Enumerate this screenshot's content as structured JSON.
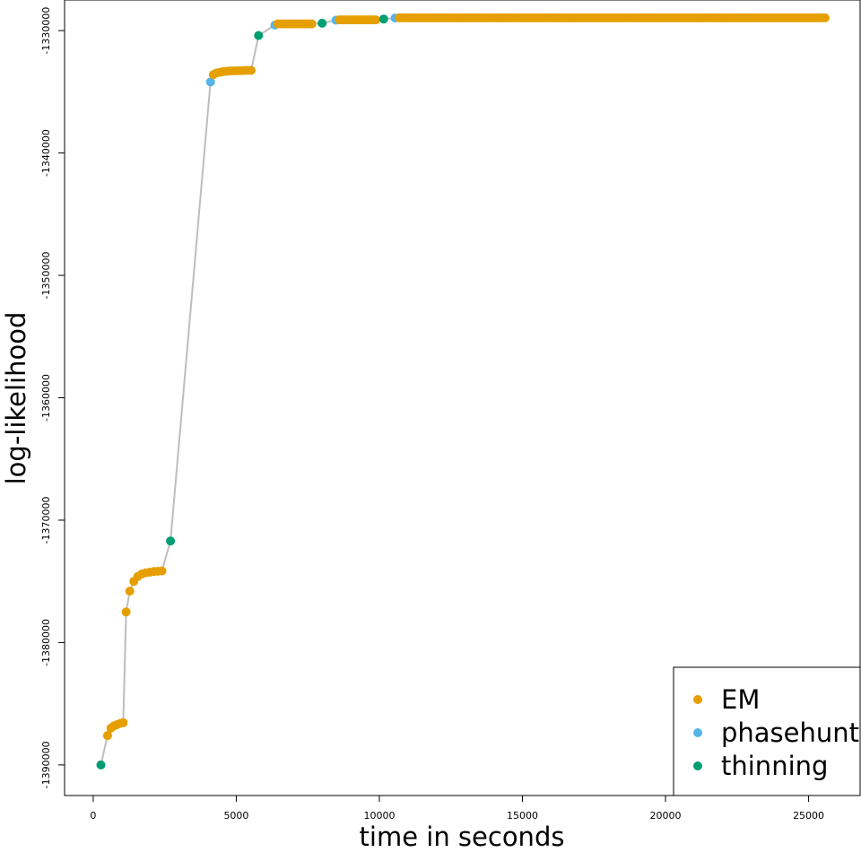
{
  "chart_data": {
    "type": "scatter",
    "xlabel": "time in seconds",
    "ylabel": "log-likelihood",
    "xlim": [
      -1000,
      26800
    ],
    "ylim": [
      -1392500,
      -1327500
    ],
    "x_ticks": [
      0,
      5000,
      10000,
      15000,
      20000,
      25000
    ],
    "y_ticks": [
      -1390000,
      -1380000,
      -1370000,
      -1360000,
      -1350000,
      -1340000,
      -1330000
    ],
    "x_tick_labels": [
      "0",
      "5000",
      "10000",
      "15000",
      "20000",
      "25000"
    ],
    "y_tick_labels": [
      "-1390000",
      "-1380000",
      "-1370000",
      "-1360000",
      "-1350000",
      "-1340000",
      "-1330000"
    ],
    "grid": false,
    "legend_position": "bottom-right",
    "line_color": "#bebebe",
    "series": [
      {
        "name": "EM",
        "color": "#E69F00"
      },
      {
        "name": "phasehunt",
        "color": "#56B4E9"
      },
      {
        "name": "thinning",
        "color": "#009E73"
      }
    ],
    "points": [
      {
        "x": 270,
        "y": -1390000,
        "s": "thinning"
      },
      {
        "x": 500,
        "y": -1387600,
        "s": "EM"
      },
      {
        "x": 620,
        "y": -1387000,
        "s": "EM"
      },
      {
        "x": 730,
        "y": -1386800,
        "s": "EM"
      },
      {
        "x": 840,
        "y": -1386700,
        "s": "EM"
      },
      {
        "x": 950,
        "y": -1386600,
        "s": "EM"
      },
      {
        "x": 1050,
        "y": -1386550,
        "s": "EM"
      },
      {
        "x": 1150,
        "y": -1377500,
        "s": "EM"
      },
      {
        "x": 1280,
        "y": -1375800,
        "s": "EM"
      },
      {
        "x": 1420,
        "y": -1375000,
        "s": "EM"
      },
      {
        "x": 1560,
        "y": -1374600,
        "s": "EM"
      },
      {
        "x": 1700,
        "y": -1374400,
        "s": "EM"
      },
      {
        "x": 1840,
        "y": -1374300,
        "s": "EM"
      },
      {
        "x": 1980,
        "y": -1374250,
        "s": "EM"
      },
      {
        "x": 2120,
        "y": -1374200,
        "s": "EM"
      },
      {
        "x": 2260,
        "y": -1374180,
        "s": "EM"
      },
      {
        "x": 2400,
        "y": -1374150,
        "s": "EM"
      },
      {
        "x": 2700,
        "y": -1371700,
        "s": "thinning"
      },
      {
        "x": 4100,
        "y": -1334200,
        "s": "phasehunt"
      },
      {
        "x": 4200,
        "y": -1333600,
        "s": "EM"
      },
      {
        "x": 4320,
        "y": -1333450,
        "s": "EM"
      },
      {
        "x": 4440,
        "y": -1333400,
        "s": "EM"
      },
      {
        "x": 4560,
        "y": -1333350,
        "s": "EM"
      },
      {
        "x": 4680,
        "y": -1333320,
        "s": "EM"
      },
      {
        "x": 4800,
        "y": -1333300,
        "s": "EM"
      },
      {
        "x": 4920,
        "y": -1333290,
        "s": "EM"
      },
      {
        "x": 5040,
        "y": -1333280,
        "s": "EM"
      },
      {
        "x": 5160,
        "y": -1333270,
        "s": "EM"
      },
      {
        "x": 5280,
        "y": -1333260,
        "s": "EM"
      },
      {
        "x": 5400,
        "y": -1333255,
        "s": "EM"
      },
      {
        "x": 5520,
        "y": -1333250,
        "s": "EM"
      }
    ],
    "em_segments": [
      {
        "x_from": 6450,
        "x_to": 7700,
        "y": -1329450
      },
      {
        "x_from": 8600,
        "x_to": 9900,
        "y": -1329120
      },
      {
        "x_from": 10700,
        "x_to": 25650,
        "y": -1328960
      }
    ],
    "transition_points": [
      {
        "x": 5780,
        "y": -1330400,
        "s": "thinning"
      },
      {
        "x": 6350,
        "y": -1329550,
        "s": "phasehunt"
      },
      {
        "x": 8000,
        "y": -1329400,
        "s": "thinning"
      },
      {
        "x": 8480,
        "y": -1329150,
        "s": "phasehunt"
      },
      {
        "x": 10150,
        "y": -1329050,
        "s": "thinning"
      },
      {
        "x": 10550,
        "y": -1328970,
        "s": "phasehunt"
      }
    ]
  }
}
